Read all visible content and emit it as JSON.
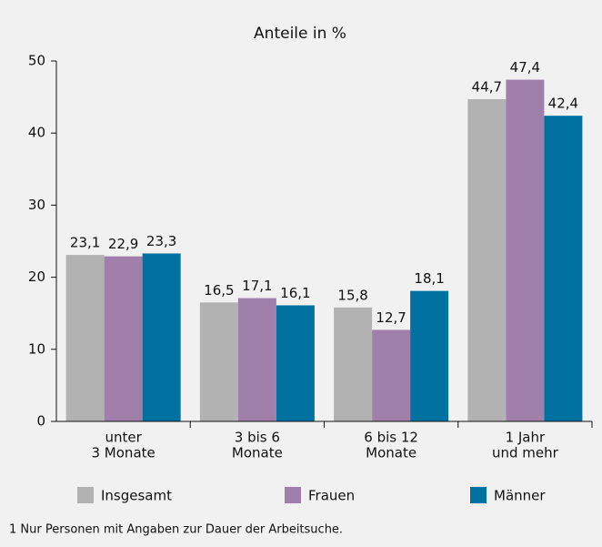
{
  "chart_data": {
    "type": "bar",
    "title": "Anteile in %",
    "categories": [
      [
        "unter",
        "3 Monate"
      ],
      [
        "3 bis 6",
        "Monate"
      ],
      [
        "6 bis 12",
        "Monate"
      ],
      [
        "1 Jahr",
        "und mehr"
      ]
    ],
    "series": [
      {
        "name": "Insgesamt",
        "color": "#b2b2b2",
        "values": [
          23.1,
          16.5,
          15.8,
          44.7
        ],
        "value_labels": [
          "23,1",
          "16,5",
          "15,8",
          "44,7"
        ]
      },
      {
        "name": "Frauen",
        "color": "#a07fab",
        "values": [
          22.9,
          17.1,
          12.7,
          47.4
        ],
        "value_labels": [
          "22,9",
          "17,1",
          "12,7",
          "47,4"
        ]
      },
      {
        "name": "Männer",
        "color": "#0071a1",
        "values": [
          23.3,
          16.1,
          18.1,
          42.4
        ],
        "value_labels": [
          "23,3",
          "16,1",
          "18,1",
          "42,4"
        ]
      }
    ],
    "ylim": [
      0,
      50
    ],
    "yticks": [
      0,
      10,
      20,
      30,
      40,
      50
    ],
    "legend": "bottom",
    "footnote": "1 Nur Personen mit Angaben zur Dauer der Arbeitsuche."
  }
}
